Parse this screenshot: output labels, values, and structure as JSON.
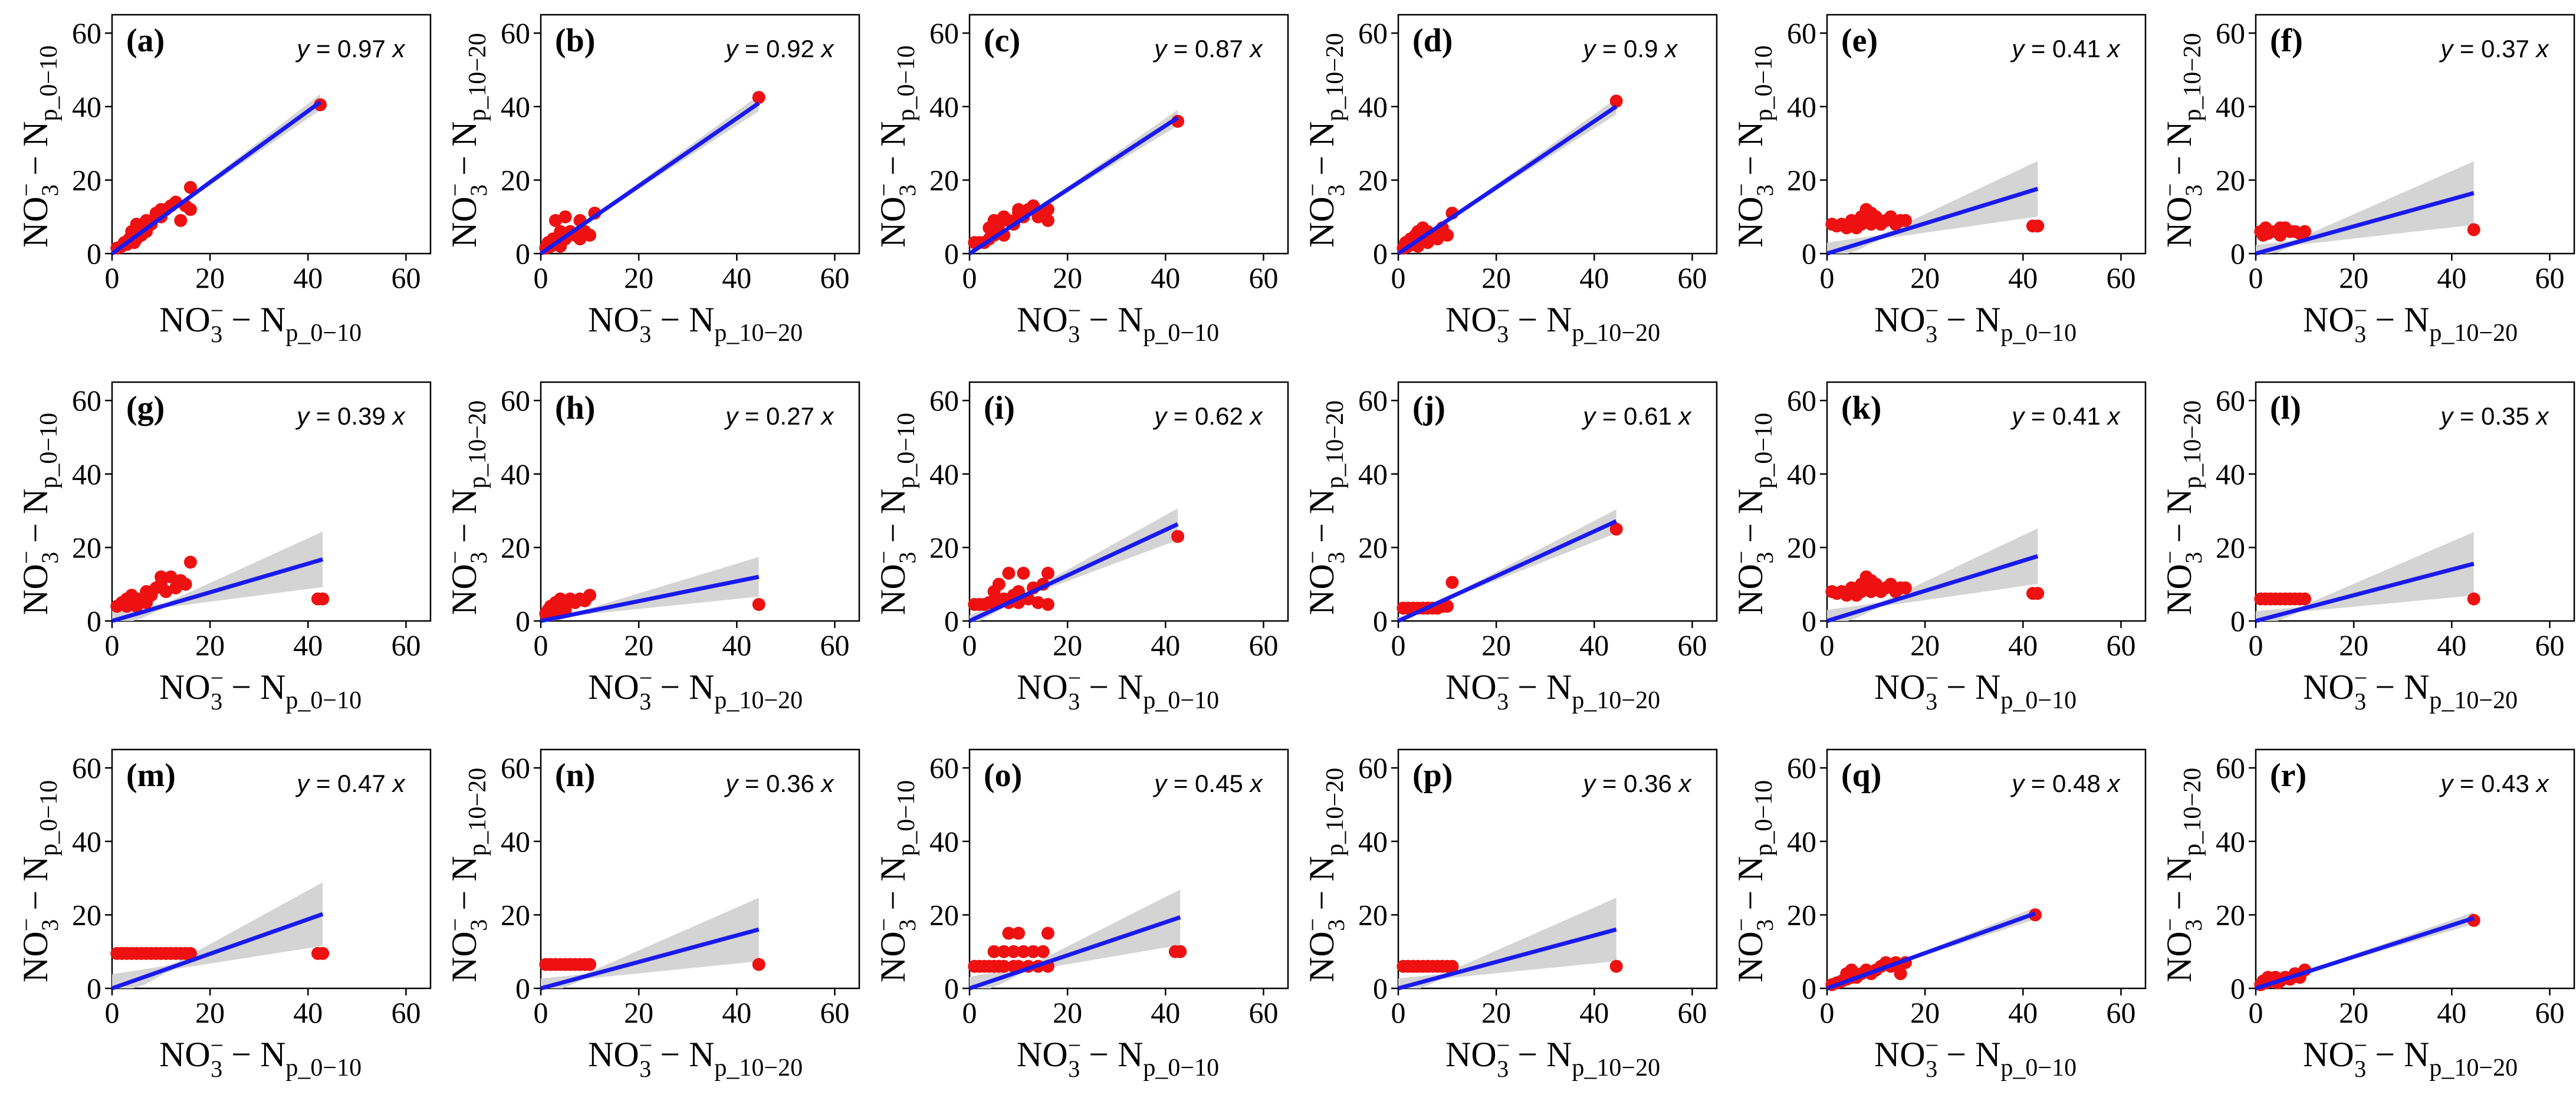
{
  "figure": {
    "axis_label_base": "NO",
    "axis_label_sub_sup_sub": "3",
    "axis_label_sup": "−",
    "axis_label_dash": "−",
    "axis_label_n": "N",
    "axis_label_sub_prefix": "p_",
    "axis_label_sub_ranges": [
      "0−10",
      "10−20"
    ],
    "equation_lhs": "y",
    "equation_eq": "=",
    "equation_x": "x"
  },
  "chart_data": [
    {
      "type": "scatter",
      "label": "(a)",
      "slope": 0.97,
      "equation": "y = 0.97 x",
      "xlabel": "NO3− − Np_0−10",
      "ylabel": "NO3− − Np_0−10",
      "xlim": [
        0,
        65
      ],
      "ylim": [
        0,
        65
      ],
      "xticks": [
        0,
        20,
        40,
        60
      ],
      "yticks": [
        0,
        20,
        40,
        60
      ],
      "ci_halfwidth_at_max": 2,
      "x": [
        1,
        2,
        2.5,
        3,
        3.5,
        4,
        4.5,
        5,
        5,
        6,
        6,
        7,
        7,
        8,
        9,
        10,
        10,
        11,
        12,
        13,
        14,
        15,
        16,
        16,
        42.5
      ],
      "y": [
        1.5,
        2,
        3,
        2.5,
        4,
        6,
        3,
        8,
        4,
        5,
        7,
        6,
        9,
        8,
        11,
        10,
        12,
        12,
        13,
        14,
        9,
        13,
        12,
        18,
        40.5
      ]
    },
    {
      "type": "scatter",
      "label": "(b)",
      "slope": 0.92,
      "equation": "y = 0.92 x",
      "xlabel": "NO3− − Np_10−20",
      "ylabel": "NO3− − Np_10−20",
      "xlim": [
        0,
        65
      ],
      "ylim": [
        0,
        65
      ],
      "xticks": [
        0,
        20,
        40,
        60
      ],
      "yticks": [
        0,
        20,
        40,
        60
      ],
      "ci_halfwidth_at_max": 2,
      "x": [
        1,
        1.5,
        2,
        2.5,
        3,
        3,
        4,
        4,
        5,
        5,
        6,
        7,
        8,
        8,
        9,
        10,
        11,
        44.5
      ],
      "y": [
        1.5,
        3,
        2,
        4,
        3,
        9,
        2,
        6,
        4,
        10,
        6,
        5,
        4,
        9,
        6,
        5,
        11,
        42.5
      ]
    },
    {
      "type": "scatter",
      "label": "(c)",
      "slope": 0.87,
      "equation": "y = 0.87 x",
      "xlabel": "NO3− − Np_0−10",
      "ylabel": "NO3− − Np_0−10",
      "xlim": [
        0,
        65
      ],
      "ylim": [
        0,
        65
      ],
      "xticks": [
        0,
        20,
        40,
        60
      ],
      "yticks": [
        0,
        20,
        40,
        60
      ],
      "ci_halfwidth_at_max": 2,
      "x": [
        1,
        2,
        3,
        4,
        4,
        5,
        5,
        6,
        6,
        7,
        7,
        8,
        9,
        10,
        10,
        11,
        12,
        13,
        14,
        15,
        16,
        16,
        42.5
      ],
      "y": [
        3,
        3,
        3,
        4,
        7,
        5,
        9,
        6,
        8,
        5,
        10,
        9,
        8,
        11,
        12,
        10,
        12,
        13,
        10,
        11,
        9,
        12,
        36
      ]
    },
    {
      "type": "scatter",
      "label": "(d)",
      "slope": 0.9,
      "equation": "y = 0.9 x",
      "xlabel": "NO3− − Np_10−20",
      "ylabel": "NO3− − Np_10−20",
      "xlim": [
        0,
        65
      ],
      "ylim": [
        0,
        65
      ],
      "xticks": [
        0,
        20,
        40,
        60
      ],
      "yticks": [
        0,
        20,
        40,
        60
      ],
      "ci_halfwidth_at_max": 2,
      "x": [
        1,
        1.5,
        2,
        2.5,
        3,
        3.5,
        4,
        4,
        5,
        5,
        6,
        6,
        7,
        8,
        9,
        10,
        11,
        44.5
      ],
      "y": [
        1.5,
        3,
        2,
        4,
        3,
        5,
        6,
        2,
        4,
        7,
        3,
        6,
        5,
        4,
        7,
        5,
        11,
        41.5
      ]
    },
    {
      "type": "scatter",
      "label": "(e)",
      "slope": 0.41,
      "equation": "y = 0.41 x",
      "xlabel": "NO3− − Np_0−10",
      "ylabel": "NO3− − Np_0−10",
      "xlim": [
        0,
        65
      ],
      "ylim": [
        0,
        65
      ],
      "xticks": [
        0,
        20,
        40,
        60
      ],
      "yticks": [
        0,
        20,
        40,
        60
      ],
      "ci_halfwidth_at_max": 7,
      "x": [
        1,
        2,
        3,
        4,
        5,
        5,
        6,
        6,
        7,
        7,
        8,
        8,
        9,
        9,
        10,
        10,
        11,
        12,
        13,
        14,
        15,
        16,
        42,
        43
      ],
      "y": [
        8,
        7.5,
        8,
        7,
        8,
        9,
        7,
        8,
        10,
        8,
        12,
        9,
        11,
        8,
        9,
        10,
        8,
        9,
        10,
        8,
        9,
        9,
        7.5,
        7.5
      ]
    },
    {
      "type": "scatter",
      "label": "(f)",
      "slope": 0.37,
      "equation": "y = 0.37 x",
      "xlabel": "NO3− − Np_10−20",
      "ylabel": "NO3− − Np_10−20",
      "xlim": [
        0,
        65
      ],
      "ylim": [
        0,
        65
      ],
      "xticks": [
        0,
        20,
        40,
        60
      ],
      "yticks": [
        0,
        20,
        40,
        60
      ],
      "ci_halfwidth_at_max": 8,
      "x": [
        1,
        1.5,
        2,
        2.5,
        3,
        4,
        5,
        5,
        6,
        7,
        8,
        9,
        10,
        44.5
      ],
      "y": [
        6,
        5,
        7,
        5.5,
        6,
        6,
        5,
        7,
        7,
        6,
        6,
        5.5,
        6,
        6.5
      ]
    },
    {
      "type": "scatter",
      "label": "(g)",
      "slope": 0.39,
      "equation": "y = 0.39 x",
      "xlabel": "NO3− − Np_0−10",
      "ylabel": "NO3− − Np_0−10",
      "xlim": [
        0,
        65
      ],
      "ylim": [
        0,
        65
      ],
      "xticks": [
        0,
        20,
        40,
        60
      ],
      "yticks": [
        0,
        20,
        40,
        60
      ],
      "ci_halfwidth_at_max": 7,
      "x": [
        1,
        2,
        3,
        3,
        4,
        4,
        5,
        5,
        6,
        7,
        7,
        8,
        9,
        10,
        10,
        11,
        12,
        13,
        14,
        15,
        16,
        42,
        43
      ],
      "y": [
        4,
        5,
        4,
        6,
        5,
        7,
        6,
        4,
        6,
        5,
        8,
        7,
        9,
        12,
        10,
        8,
        12,
        9,
        11,
        10,
        16,
        6,
        6
      ]
    },
    {
      "type": "scatter",
      "label": "(h)",
      "slope": 0.27,
      "equation": "y = 0.27 x",
      "xlabel": "NO3− − Np_10−20",
      "ylabel": "NO3− − Np_10−20",
      "xlim": [
        0,
        65
      ],
      "ylim": [
        0,
        65
      ],
      "xticks": [
        0,
        20,
        40,
        60
      ],
      "yticks": [
        0,
        20,
        40,
        60
      ],
      "ci_halfwidth_at_max": 5,
      "x": [
        1,
        1.5,
        2,
        2.5,
        3,
        3,
        4,
        4,
        5,
        5,
        6,
        7,
        8,
        9,
        10,
        44.5
      ],
      "y": [
        2,
        3,
        4,
        3,
        5,
        2.5,
        4,
        6,
        3,
        5,
        6,
        5,
        6,
        5.5,
        7,
        4.5
      ]
    },
    {
      "type": "scatter",
      "label": "(i)",
      "slope": 0.62,
      "equation": "y = 0.62 x",
      "xlabel": "NO3− − Np_0−10",
      "ylabel": "NO3− − Np_0−10",
      "xlim": [
        0,
        65
      ],
      "ylim": [
        0,
        65
      ],
      "xticks": [
        0,
        20,
        40,
        60
      ],
      "yticks": [
        0,
        20,
        40,
        60
      ],
      "ci_halfwidth_at_max": 4,
      "x": [
        1,
        2,
        3,
        4,
        5,
        5,
        6,
        6,
        7,
        8,
        8,
        9,
        10,
        10,
        11,
        12,
        13,
        14,
        15,
        16,
        16,
        42.5
      ],
      "y": [
        4.5,
        4.5,
        4.5,
        5,
        5,
        8,
        5,
        10,
        6,
        5,
        13,
        7,
        8,
        5,
        13,
        6,
        9,
        5,
        10,
        4.5,
        13,
        23
      ]
    },
    {
      "type": "scatter",
      "label": "(j)",
      "slope": 0.61,
      "equation": "y = 0.61 x",
      "xlabel": "NO3− − Np_10−20",
      "ylabel": "NO3− − Np_10−20",
      "xlim": [
        0,
        65
      ],
      "ylim": [
        0,
        65
      ],
      "xticks": [
        0,
        20,
        40,
        60
      ],
      "yticks": [
        0,
        20,
        40,
        60
      ],
      "ci_halfwidth_at_max": 3,
      "x": [
        1,
        2,
        3,
        4,
        5,
        6,
        7,
        8,
        9,
        10,
        11,
        44.5
      ],
      "y": [
        3.5,
        3.5,
        3.5,
        3.5,
        3.5,
        3.5,
        3.5,
        3.5,
        4,
        4,
        10.5,
        25
      ]
    },
    {
      "type": "scatter",
      "label": "(k)",
      "slope": 0.41,
      "equation": "y = 0.41 x",
      "xlabel": "NO3− − Np_0−10",
      "ylabel": "NO3− − Np_0−10",
      "xlim": [
        0,
        65
      ],
      "ylim": [
        0,
        65
      ],
      "xticks": [
        0,
        20,
        40,
        60
      ],
      "yticks": [
        0,
        20,
        40,
        60
      ],
      "ci_halfwidth_at_max": 7,
      "x": [
        1,
        2,
        3,
        4,
        5,
        5,
        6,
        6,
        7,
        7,
        8,
        8,
        9,
        9,
        10,
        10,
        11,
        12,
        13,
        14,
        15,
        16,
        42,
        43
      ],
      "y": [
        8,
        7.5,
        8,
        7,
        8,
        9,
        7,
        8,
        10,
        8,
        12,
        9,
        11,
        8,
        9,
        10,
        8,
        9,
        10,
        8,
        9,
        9,
        7.5,
        7.5
      ]
    },
    {
      "type": "scatter",
      "label": "(l)",
      "slope": 0.35,
      "equation": "y = 0.35 x",
      "xlabel": "NO3− − Np_10−20",
      "ylabel": "NO3− − Np_10−20",
      "xlim": [
        0,
        65
      ],
      "ylim": [
        0,
        65
      ],
      "xticks": [
        0,
        20,
        40,
        60
      ],
      "yticks": [
        0,
        20,
        40,
        60
      ],
      "ci_halfwidth_at_max": 8,
      "x": [
        1,
        2,
        3,
        4,
        5,
        6,
        7,
        8,
        9,
        10,
        44.5
      ],
      "y": [
        6,
        6,
        6,
        6,
        6,
        6,
        6,
        6,
        6,
        6,
        6
      ]
    },
    {
      "type": "scatter",
      "label": "(m)",
      "slope": 0.47,
      "equation": "y = 0.47 x",
      "xlabel": "NO3− − Np_0−10",
      "ylabel": "NO3− − Np_0−10",
      "xlim": [
        0,
        65
      ],
      "ylim": [
        0,
        65
      ],
      "xticks": [
        0,
        20,
        40,
        60
      ],
      "yticks": [
        0,
        20,
        40,
        60
      ],
      "ci_halfwidth_at_max": 8,
      "x": [
        1,
        2,
        3,
        4,
        5,
        6,
        7,
        8,
        9,
        10,
        11,
        12,
        13,
        14,
        15,
        16,
        42,
        43
      ],
      "y": [
        9.5,
        9.5,
        9.5,
        9.5,
        9.5,
        9.5,
        9.5,
        9.5,
        9.5,
        9.5,
        9.5,
        9.5,
        9.5,
        9.5,
        9.5,
        9.5,
        9.5,
        9.5
      ]
    },
    {
      "type": "scatter",
      "label": "(n)",
      "slope": 0.36,
      "equation": "y = 0.36 x",
      "xlabel": "NO3− − Np_10−20",
      "ylabel": "NO3− − Np_10−20",
      "xlim": [
        0,
        65
      ],
      "ylim": [
        0,
        65
      ],
      "xticks": [
        0,
        20,
        40,
        60
      ],
      "yticks": [
        0,
        20,
        40,
        60
      ],
      "ci_halfwidth_at_max": 8,
      "x": [
        1,
        2,
        3,
        4,
        5,
        6,
        7,
        8,
        9,
        10,
        44.5
      ],
      "y": [
        6.5,
        6.5,
        6.5,
        6.5,
        6.5,
        6.5,
        6.5,
        6.5,
        6.5,
        6.5,
        6.5
      ]
    },
    {
      "type": "scatter",
      "label": "(o)",
      "slope": 0.45,
      "equation": "y = 0.45 x",
      "xlabel": "NO3− − Np_0−10",
      "ylabel": "NO3− − Np_0−10",
      "xlim": [
        0,
        65
      ],
      "ylim": [
        0,
        65
      ],
      "xticks": [
        0,
        20,
        40,
        60
      ],
      "yticks": [
        0,
        20,
        40,
        60
      ],
      "ci_halfwidth_at_max": 7,
      "x": [
        1,
        2,
        3,
        4,
        5,
        5,
        6,
        7,
        7,
        8,
        9,
        9,
        10,
        10,
        11,
        12,
        13,
        14,
        15,
        16,
        16,
        42,
        43
      ],
      "y": [
        6,
        6,
        6,
        6,
        6,
        10,
        6,
        6,
        10,
        15,
        6,
        10,
        15,
        6,
        10,
        6,
        10,
        6,
        10,
        6,
        15,
        10,
        10
      ]
    },
    {
      "type": "scatter",
      "label": "(p)",
      "slope": 0.36,
      "equation": "y = 0.36 x",
      "xlabel": "NO3− − Np_10−20",
      "ylabel": "NO3− − Np_10−20",
      "xlim": [
        0,
        65
      ],
      "ylim": [
        0,
        65
      ],
      "xticks": [
        0,
        20,
        40,
        60
      ],
      "yticks": [
        0,
        20,
        40,
        60
      ],
      "ci_halfwidth_at_max": 8,
      "x": [
        1,
        2,
        3,
        4,
        5,
        6,
        7,
        8,
        9,
        10,
        11,
        44.5
      ],
      "y": [
        6,
        6,
        6,
        6,
        6,
        6,
        6,
        6,
        6,
        6,
        6,
        6
      ]
    },
    {
      "type": "scatter",
      "label": "(q)",
      "slope": 0.48,
      "equation": "y = 0.48 x",
      "xlabel": "NO3− − Np_0−10",
      "ylabel": "NO3− − Np_0−10",
      "xlim": [
        0,
        65
      ],
      "ylim": [
        0,
        65
      ],
      "xticks": [
        0,
        20,
        40,
        60
      ],
      "yticks": [
        0,
        20,
        40,
        60
      ],
      "ci_halfwidth_at_max": 1.5,
      "x": [
        1,
        2,
        3,
        4,
        4,
        5,
        5,
        6,
        7,
        8,
        9,
        10,
        11,
        12,
        13,
        14,
        15,
        16,
        42.5
      ],
      "y": [
        1,
        1.5,
        2,
        2.5,
        4,
        3,
        5,
        3,
        4,
        5,
        4,
        5,
        6,
        7,
        6,
        7,
        4,
        7,
        20
      ]
    },
    {
      "type": "scatter",
      "label": "(r)",
      "slope": 0.43,
      "equation": "y = 0.43 x",
      "xlabel": "NO3− − Np_10−20",
      "ylabel": "NO3− − Np_10−20",
      "xlim": [
        0,
        65
      ],
      "ylim": [
        0,
        65
      ],
      "xticks": [
        0,
        20,
        40,
        60
      ],
      "yticks": [
        0,
        20,
        40,
        60
      ],
      "ci_halfwidth_at_max": 1.5,
      "x": [
        1,
        1.5,
        2,
        2.5,
        3,
        3.5,
        4,
        4.5,
        5,
        6,
        7,
        8,
        9,
        10,
        44.5
      ],
      "y": [
        1,
        2,
        1.5,
        3,
        2,
        2.5,
        3,
        1.5,
        2,
        3,
        2.5,
        4,
        3,
        5,
        18.5
      ]
    }
  ]
}
